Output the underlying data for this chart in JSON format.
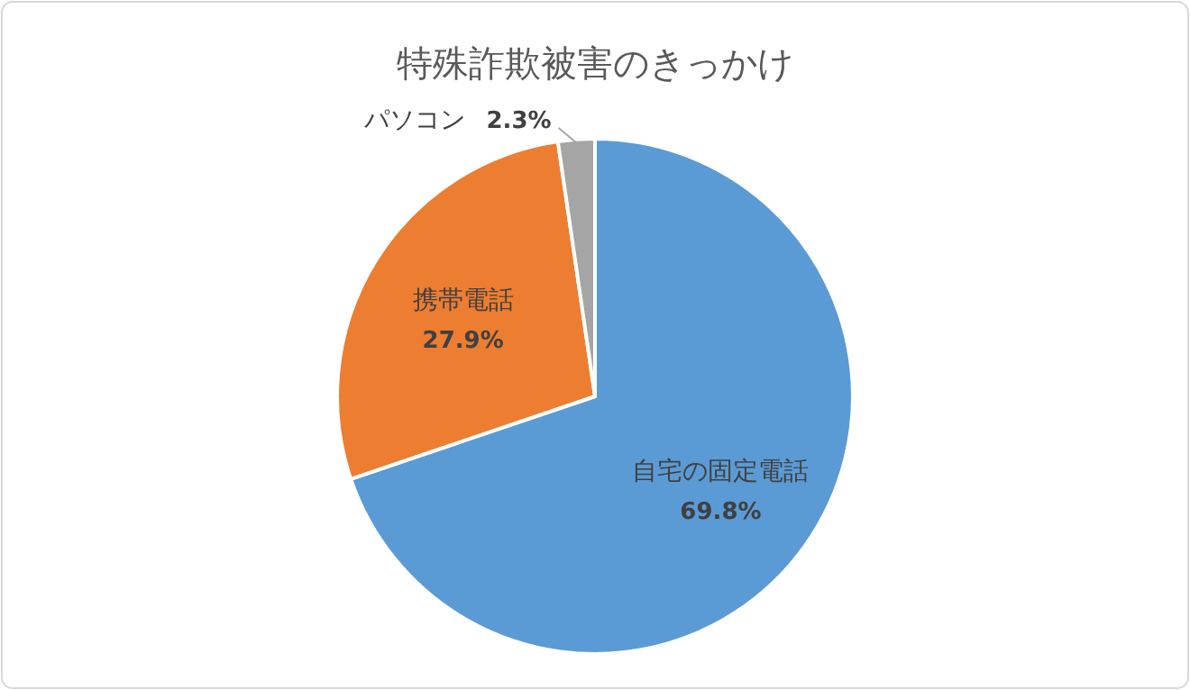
{
  "chart_data": {
    "type": "pie",
    "title": "特殊詐欺被害のきっかけ",
    "categories": [
      "自宅の固定電話",
      "携帯電話",
      "パソコン"
    ],
    "values": [
      69.8,
      27.9,
      2.3
    ],
    "colors": [
      "#5b9bd5",
      "#ed7d31",
      "#a5a5a5"
    ],
    "data_labels": true,
    "value_labels": [
      "69.8%",
      "27.9%",
      "2.3%"
    ]
  }
}
